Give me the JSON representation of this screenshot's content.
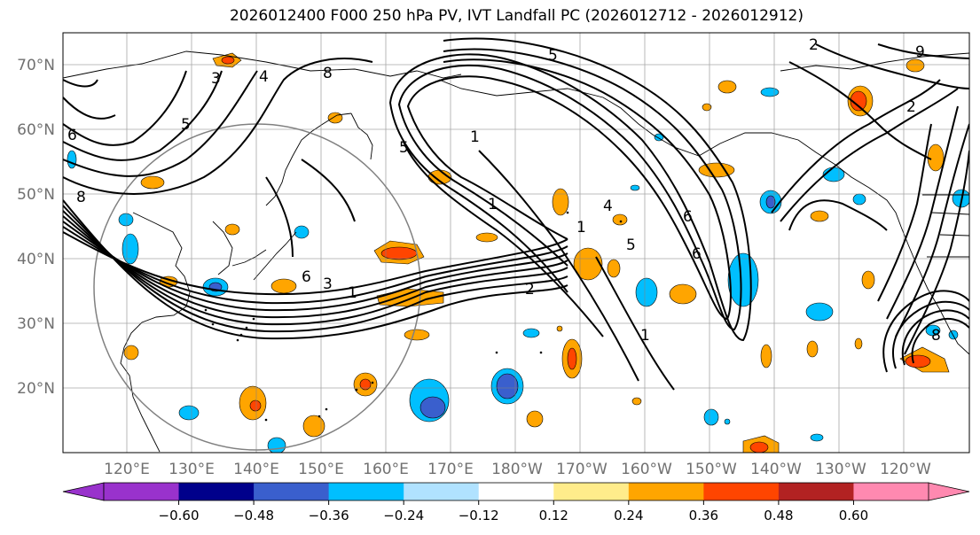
{
  "title": "2026012400 F000 250 hPa PV, IVT Landfall PC (2026012712 - 2026012912)",
  "lat_labels": [
    "70°N",
    "60°N",
    "50°N",
    "40°N",
    "30°N",
    "20°N"
  ],
  "lon_labels": [
    "120°E",
    "130°E",
    "140°E",
    "150°E",
    "160°E",
    "170°E",
    "180°W",
    "170°W",
    "160°W",
    "150°W",
    "140°W",
    "130°W",
    "120°W"
  ],
  "contour_labels": [
    "5",
    "2",
    "3",
    "4",
    "8",
    "5",
    "6",
    "8",
    "5",
    "1",
    "1",
    "4",
    "1",
    "6",
    "3",
    "1",
    "2",
    "5",
    "6",
    "6",
    "2",
    "9",
    "8",
    "1"
  ],
  "colorbar": {
    "colors": [
      "#9932cc",
      "#00008b",
      "#3a5fcd",
      "#00bfff",
      "#b0e2ff",
      "#ffffff",
      "#ffec8b",
      "#ffa500",
      "#ff4500",
      "#b22222",
      "#ff89b0"
    ],
    "under_color": "#9932cc",
    "over_color": "#ff89b0",
    "tick_values": [
      -0.6,
      -0.48,
      -0.36,
      -0.24,
      -0.12,
      0.12,
      0.24,
      0.36,
      0.48,
      0.6
    ],
    "tick_labels": [
      "−0.60",
      "−0.48",
      "−0.36",
      "−0.24",
      "−0.12",
      "0.12",
      "0.24",
      "0.36",
      "0.48",
      "0.60"
    ]
  },
  "colors": {
    "contour": "#000000",
    "grid": "#808080",
    "axis_label": "#707070",
    "circle": "#808080"
  }
}
